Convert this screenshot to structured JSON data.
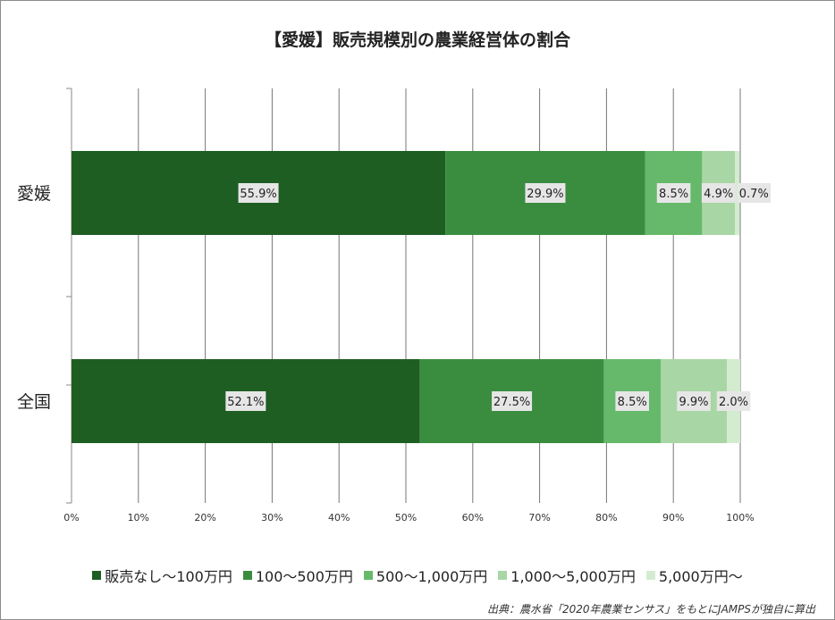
{
  "chart_data": {
    "type": "bar",
    "orientation": "horizontal",
    "stacked": "percent",
    "title": "【愛媛】販売規模別の農業経営体の割合",
    "categories": [
      "愛媛",
      "全国"
    ],
    "series": [
      {
        "name": "販売なし～100万円",
        "values": [
          55.9,
          52.1
        ],
        "labels": [
          "55.9%",
          "52.1%"
        ],
        "color": "#1e5e22"
      },
      {
        "name": "100～500万円",
        "values": [
          29.9,
          27.5
        ],
        "labels": [
          "29.9%",
          "27.5%"
        ],
        "color": "#3a8d3f"
      },
      {
        "name": "500～1,000万円",
        "values": [
          8.5,
          8.5
        ],
        "labels": [
          "8.5%",
          "8.5%"
        ],
        "color": "#66b96a"
      },
      {
        "name": "1,000～5,000万円",
        "values": [
          4.9,
          9.9
        ],
        "labels": [
          "4.9%",
          "9.9%"
        ],
        "color": "#a8d6a4"
      },
      {
        "name": "5,000万円～",
        "values": [
          0.7,
          2.0
        ],
        "labels": [
          "0.7%",
          "2.0%"
        ],
        "color": "#d3ecd0"
      }
    ],
    "xlim": [
      0,
      100
    ],
    "xticks": [
      0,
      10,
      20,
      30,
      40,
      50,
      60,
      70,
      80,
      90,
      100
    ],
    "xtick_labels": [
      "0%",
      "10%",
      "20%",
      "30%",
      "40%",
      "50%",
      "60%",
      "70%",
      "80%",
      "90%",
      "100%"
    ],
    "grid": true,
    "legend_position": "bottom"
  },
  "source_note": "出典：農水省「2020年農業センサス」をもとにJAMPSが独自に算出"
}
